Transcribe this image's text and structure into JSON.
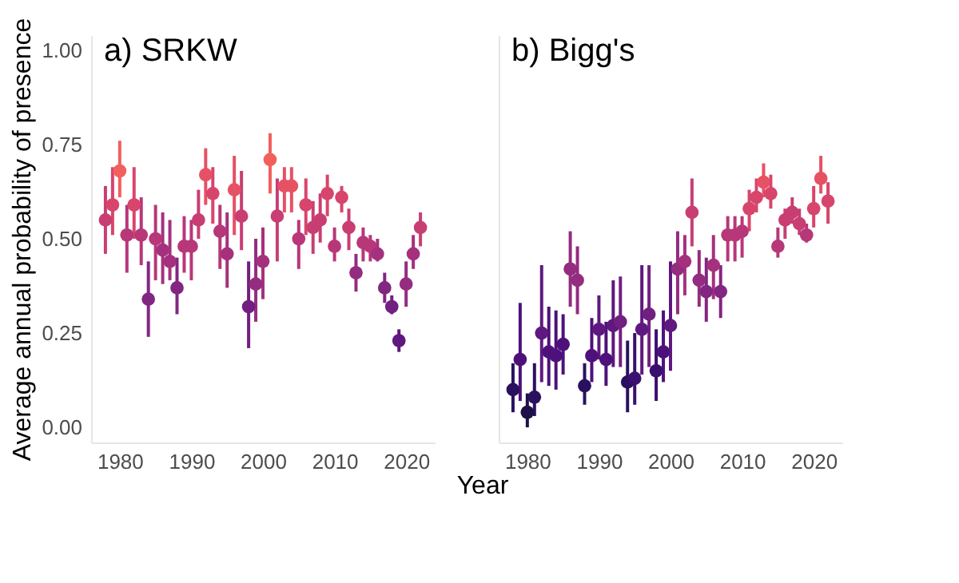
{
  "chart_data": [
    {
      "type": "scatter",
      "title": "a) SRKW",
      "ylabel": "Average annual probability of presence",
      "xlabel": "Year",
      "xlim": [
        1976,
        2024
      ],
      "xticks": [
        1980,
        1990,
        2000,
        2010,
        2020
      ],
      "ylim": [
        -0.04,
        1.04
      ],
      "yticks": [
        {
          "value": 0,
          "label": "0.00"
        },
        {
          "value": 0.25,
          "label": "0.25"
        },
        {
          "value": 0.5,
          "label": "0.50"
        },
        {
          "value": 0.75,
          "label": "0.75"
        },
        {
          "value": 1,
          "label": "1.00"
        }
      ],
      "grid": false,
      "marker": "circle",
      "x": [
        1978,
        1979,
        1980,
        1981,
        1982,
        1983,
        1984,
        1985,
        1986,
        1987,
        1988,
        1989,
        1990,
        1991,
        1992,
        1993,
        1994,
        1995,
        1996,
        1997,
        1998,
        1999,
        2000,
        2001,
        2002,
        2003,
        2004,
        2005,
        2006,
        2007,
        2008,
        2009,
        2010,
        2011,
        2012,
        2013,
        2014,
        2015,
        2016,
        2017,
        2018,
        2019,
        2020,
        2021,
        2022
      ],
      "values": [
        0.55,
        0.59,
        0.68,
        0.51,
        0.59,
        0.51,
        0.34,
        0.5,
        0.47,
        0.44,
        0.37,
        0.48,
        0.48,
        0.55,
        0.67,
        0.62,
        0.52,
        0.46,
        0.63,
        0.56,
        0.32,
        0.38,
        0.44,
        0.71,
        0.56,
        0.64,
        0.64,
        0.5,
        0.59,
        0.53,
        0.55,
        0.62,
        0.48,
        0.61,
        0.53,
        0.41,
        0.49,
        0.48,
        0.46,
        0.37,
        0.32,
        0.23,
        0.38,
        0.46,
        0.53
      ],
      "errors": [
        [
          0.46,
          0.64
        ],
        [
          0.51,
          0.69
        ],
        [
          0.61,
          0.76
        ],
        [
          0.41,
          0.59
        ],
        [
          0.5,
          0.69
        ],
        [
          0.43,
          0.61
        ],
        [
          0.24,
          0.44
        ],
        [
          0.39,
          0.59
        ],
        [
          0.38,
          0.57
        ],
        [
          0.39,
          0.55
        ],
        [
          0.3,
          0.45
        ],
        [
          0.41,
          0.56
        ],
        [
          0.39,
          0.55
        ],
        [
          0.5,
          0.63
        ],
        [
          0.59,
          0.74
        ],
        [
          0.54,
          0.69
        ],
        [
          0.42,
          0.59
        ],
        [
          0.37,
          0.57
        ],
        [
          0.51,
          0.72
        ],
        [
          0.47,
          0.68
        ],
        [
          0.21,
          0.44
        ],
        [
          0.28,
          0.5
        ],
        [
          0.34,
          0.53
        ],
        [
          0.62,
          0.78
        ],
        [
          0.44,
          0.66
        ],
        [
          0.57,
          0.69
        ],
        [
          0.57,
          0.69
        ],
        [
          0.42,
          0.55
        ],
        [
          0.51,
          0.66
        ],
        [
          0.46,
          0.6
        ],
        [
          0.49,
          0.62
        ],
        [
          0.56,
          0.67
        ],
        [
          0.44,
          0.53
        ],
        [
          0.57,
          0.64
        ],
        [
          0.47,
          0.58
        ],
        [
          0.36,
          0.46
        ],
        [
          0.44,
          0.53
        ],
        [
          0.44,
          0.51
        ],
        [
          0.44,
          0.5
        ],
        [
          0.33,
          0.41
        ],
        [
          0.3,
          0.35
        ],
        [
          0.2,
          0.26
        ],
        [
          0.32,
          0.44
        ],
        [
          0.42,
          0.51
        ],
        [
          0.48,
          0.57
        ]
      ],
      "colors": [
        "#c83e73",
        "#d8456c",
        "#f1605d",
        "#b73779",
        "#d8456c",
        "#b73779",
        "#822681",
        "#b73779",
        "#a5317e",
        "#a5317e",
        "#822681",
        "#b73779",
        "#b73779",
        "#c83e73",
        "#e65164",
        "#d8456c",
        "#b73779",
        "#a5317e",
        "#e65164",
        "#c83e73",
        "#711f81",
        "#942c80",
        "#a5317e",
        "#f1605d",
        "#c83e73",
        "#e65164",
        "#e65164",
        "#b73779",
        "#d8456c",
        "#c83e73",
        "#c83e73",
        "#d8456c",
        "#b73779",
        "#d8456c",
        "#c83e73",
        "#942c80",
        "#b73779",
        "#b73779",
        "#a5317e",
        "#822681",
        "#711f81",
        "#5f187f",
        "#942c80",
        "#a5317e",
        "#c83e73"
      ]
    },
    {
      "type": "scatter",
      "title": "b) Bigg's",
      "xlim": [
        1976,
        2024
      ],
      "xticks": [
        1980,
        1990,
        2000,
        2010,
        2020
      ],
      "ylim": [
        -0.04,
        1.04
      ],
      "tick_labels": "x",
      "grid": false,
      "marker": "circle",
      "x": [
        1978,
        1979,
        1980,
        1981,
        1982,
        1983,
        1984,
        1985,
        1986,
        1987,
        1988,
        1989,
        1990,
        1991,
        1992,
        1993,
        1994,
        1995,
        1996,
        1997,
        1998,
        1999,
        2000,
        2001,
        2002,
        2003,
        2004,
        2005,
        2006,
        2007,
        2008,
        2009,
        2010,
        2011,
        2012,
        2013,
        2014,
        2015,
        2016,
        2017,
        2018,
        2019,
        2020,
        2021,
        2022
      ],
      "values": [
        0.1,
        0.18,
        0.04,
        0.08,
        0.25,
        0.2,
        0.19,
        0.22,
        0.42,
        0.39,
        0.11,
        0.19,
        0.26,
        0.18,
        0.27,
        0.28,
        0.12,
        0.13,
        0.26,
        0.3,
        0.15,
        0.2,
        0.27,
        0.42,
        0.44,
        0.57,
        0.39,
        0.36,
        0.43,
        0.36,
        0.51,
        0.51,
        0.52,
        0.58,
        0.61,
        0.65,
        0.62,
        0.48,
        0.55,
        0.57,
        0.54,
        0.51,
        0.58,
        0.66,
        0.6
      ],
      "errors": [
        [
          0.04,
          0.17
        ],
        [
          0.07,
          0.33
        ],
        [
          0.0,
          0.09
        ],
        [
          0.03,
          0.17
        ],
        [
          0.12,
          0.43
        ],
        [
          0.11,
          0.32
        ],
        [
          0.1,
          0.31
        ],
        [
          0.14,
          0.3
        ],
        [
          0.32,
          0.52
        ],
        [
          0.3,
          0.48
        ],
        [
          0.06,
          0.17
        ],
        [
          0.12,
          0.29
        ],
        [
          0.18,
          0.35
        ],
        [
          0.11,
          0.28
        ],
        [
          0.16,
          0.39
        ],
        [
          0.16,
          0.4
        ],
        [
          0.04,
          0.23
        ],
        [
          0.06,
          0.25
        ],
        [
          0.14,
          0.43
        ],
        [
          0.16,
          0.43
        ],
        [
          0.07,
          0.26
        ],
        [
          0.12,
          0.31
        ],
        [
          0.15,
          0.44
        ],
        [
          0.3,
          0.52
        ],
        [
          0.35,
          0.51
        ],
        [
          0.48,
          0.66
        ],
        [
          0.32,
          0.47
        ],
        [
          0.28,
          0.45
        ],
        [
          0.34,
          0.51
        ],
        [
          0.29,
          0.43
        ],
        [
          0.44,
          0.56
        ],
        [
          0.44,
          0.56
        ],
        [
          0.45,
          0.56
        ],
        [
          0.52,
          0.63
        ],
        [
          0.57,
          0.66
        ],
        [
          0.61,
          0.7
        ],
        [
          0.58,
          0.67
        ],
        [
          0.45,
          0.53
        ],
        [
          0.5,
          0.58
        ],
        [
          0.54,
          0.61
        ],
        [
          0.51,
          0.58
        ],
        [
          0.49,
          0.54
        ],
        [
          0.53,
          0.64
        ],
        [
          0.62,
          0.72
        ],
        [
          0.54,
          0.65
        ]
      ],
      "colors": [
        "#2a115f",
        "#4e117b",
        "#1d1147",
        "#2a115f",
        "#5f187f",
        "#4e117b",
        "#4e117b",
        "#4e117b",
        "#942c80",
        "#942c80",
        "#2a115f",
        "#4e117b",
        "#5f187f",
        "#4e117b",
        "#5f187f",
        "#711f81",
        "#2a115f",
        "#3b0f70",
        "#5f187f",
        "#711f81",
        "#3b0f70",
        "#4e117b",
        "#5f187f",
        "#942c80",
        "#a5317e",
        "#c83e73",
        "#942c80",
        "#822681",
        "#a5317e",
        "#822681",
        "#b73779",
        "#b73779",
        "#b73779",
        "#d8456c",
        "#d8456c",
        "#e65164",
        "#d8456c",
        "#b73779",
        "#c83e73",
        "#c83e73",
        "#c83e73",
        "#b73779",
        "#d8456c",
        "#e65164",
        "#d8456c"
      ]
    }
  ]
}
